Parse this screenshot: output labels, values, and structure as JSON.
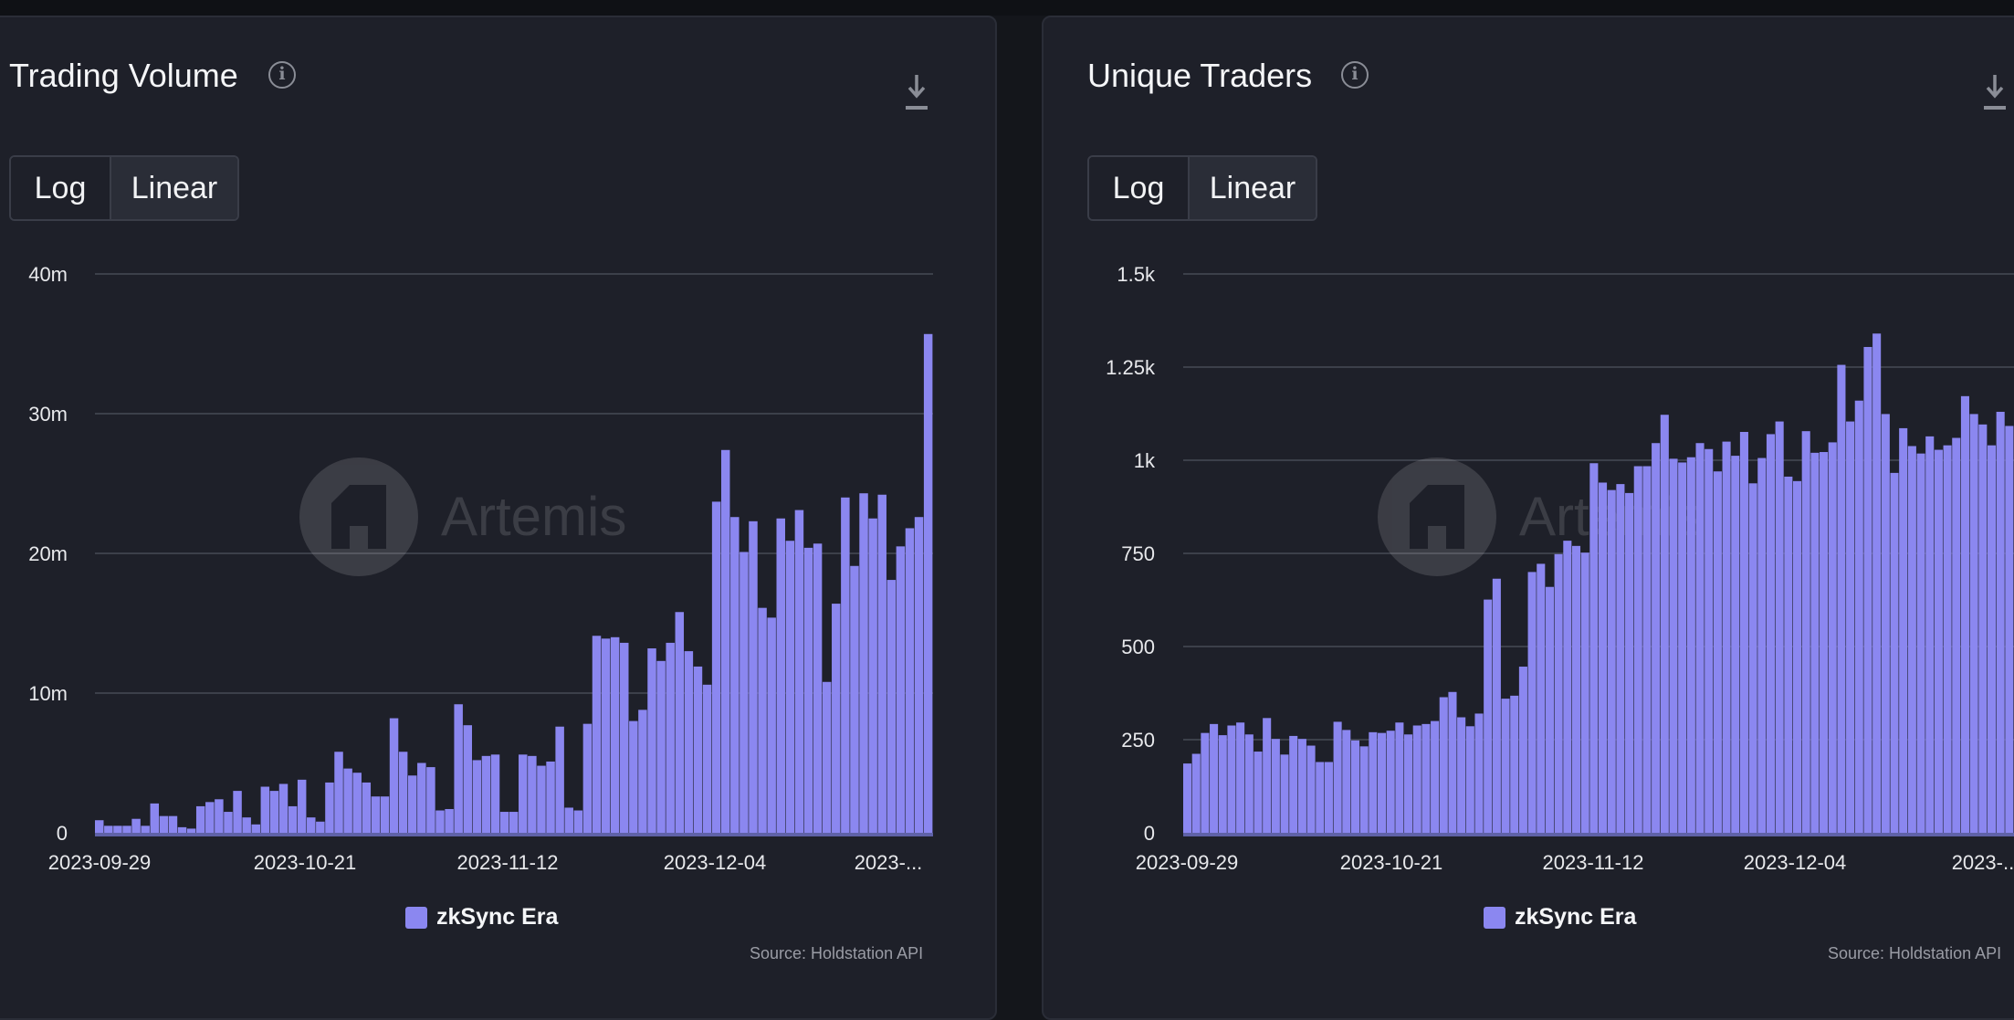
{
  "charts": [
    {
      "title": "Trading Volume",
      "scale_options": [
        "Log",
        "Linear"
      ],
      "selected_scale": "Linear",
      "watermark": "Artemis",
      "legend_label": "zkSync Era",
      "source": "Source: Holdstation API"
    },
    {
      "title": "Unique Traders",
      "scale_options": [
        "Log",
        "Linear"
      ],
      "selected_scale": "Linear",
      "watermark": "Artemis",
      "legend_label": "zkSync Era",
      "source": "Source: Holdstation API"
    }
  ],
  "colors": {
    "bar": "#8b87f0",
    "panel": "#1e2029",
    "grid": "#474a55"
  },
  "chart_data": [
    {
      "type": "bar",
      "title": "Trading Volume",
      "series": [
        {
          "name": "zkSync Era"
        }
      ],
      "x_tick_labels": [
        "2023-09-29",
        "2023-10-21",
        "2023-11-12",
        "2023-12-04",
        "2023-..."
      ],
      "y_tick_labels": [
        "0",
        "10m",
        "20m",
        "30m",
        "40m"
      ],
      "ylim": [
        0,
        40000000
      ],
      "grid": true,
      "legend": "bottom-center",
      "values": [
        0.9,
        0.5,
        0.5,
        0.5,
        1.0,
        0.5,
        2.1,
        1.2,
        1.2,
        0.4,
        0.3,
        1.9,
        2.2,
        2.4,
        1.5,
        3.0,
        1.1,
        0.6,
        3.3,
        3.0,
        3.5,
        1.9,
        3.8,
        1.1,
        0.8,
        3.6,
        5.8,
        4.6,
        4.3,
        3.6,
        2.6,
        2.6,
        8.2,
        5.8,
        4.1,
        5.0,
        4.7,
        1.6,
        1.7,
        9.2,
        7.7,
        5.2,
        5.5,
        5.6,
        1.5,
        1.5,
        5.6,
        5.5,
        4.8,
        5.1,
        7.6,
        1.8,
        1.6,
        7.8,
        14.1,
        13.9,
        14.0,
        13.6,
        8.0,
        8.8,
        13.2,
        12.3,
        13.6,
        15.8,
        13.0,
        11.9,
        10.6,
        23.7,
        27.4,
        22.6,
        20.1,
        22.3,
        16.1,
        15.4,
        22.5,
        20.9,
        23.1,
        20.4,
        20.7,
        10.8,
        16.4,
        24.0,
        19.1,
        24.3,
        22.5,
        24.2,
        18.1,
        20.5,
        21.8,
        22.6,
        35.7
      ]
    },
    {
      "type": "bar",
      "title": "Unique Traders",
      "series": [
        {
          "name": "zkSync Era"
        }
      ],
      "x_tick_labels": [
        "2023-09-29",
        "2023-10-21",
        "2023-11-12",
        "2023-12-04",
        "2023-..."
      ],
      "y_tick_labels": [
        "0",
        "250",
        "500",
        "750",
        "1k",
        "1.25k",
        "1.5k"
      ],
      "ylim": [
        0,
        1500
      ],
      "grid": true,
      "legend": "bottom-center",
      "values": [
        186,
        212,
        268,
        292,
        262,
        288,
        296,
        264,
        218,
        308,
        252,
        210,
        260,
        252,
        234,
        190,
        190,
        298,
        276,
        248,
        232,
        270,
        268,
        274,
        296,
        264,
        288,
        292,
        300,
        364,
        378,
        310,
        286,
        320,
        626,
        682,
        360,
        368,
        446,
        700,
        722,
        660,
        748,
        784,
        770,
        752,
        992,
        940,
        920,
        936,
        912,
        984,
        984,
        1046,
        1122,
        1004,
        994,
        1008,
        1046,
        1030,
        970,
        1050,
        1012,
        1076,
        938,
        1006,
        1070,
        1104,
        956,
        944,
        1078,
        1020,
        1022,
        1048,
        1256,
        1104,
        1160,
        1304,
        1340,
        1124,
        966,
        1086,
        1038,
        1018,
        1064,
        1028,
        1040,
        1060,
        1172,
        1124,
        1096,
        1040,
        1130,
        1092
      ]
    }
  ]
}
